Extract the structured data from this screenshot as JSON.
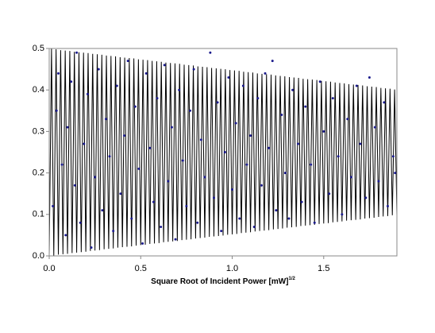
{
  "chart_data": {
    "type": "scatter",
    "xlabel": "Square Root of Incident Power [mW]",
    "xlabel_sup": "1/2",
    "xlim": [
      0,
      1.9
    ],
    "ylim": [
      0,
      0.5
    ],
    "xticks": [
      {
        "value": 0,
        "label": "0.0"
      },
      0.5,
      {
        "value": 1,
        "label": "1.0"
      },
      1.5
    ],
    "yticks": [
      {
        "value": 0,
        "label": "0.0"
      },
      0.1,
      0.2,
      0.3,
      0.4,
      0.5
    ],
    "grid": false,
    "series": [
      {
        "type": "line",
        "color": "#000000",
        "x": [
          0,
          0.0125,
          0.025,
          0.0375,
          0.05,
          0.0625,
          0.075,
          0.0875,
          0.1,
          0.1125,
          0.125,
          0.1375,
          0.15,
          0.1625,
          0.175,
          0.1875,
          0.2,
          0.2125,
          0.225,
          0.2375,
          0.25,
          0.2625,
          0.275,
          0.2875,
          0.3,
          0.3125,
          0.325,
          0.3375,
          0.35,
          0.3625,
          0.375,
          0.3875,
          0.4,
          0.4125,
          0.425,
          0.4375,
          0.45,
          0.4625,
          0.475,
          0.4875,
          0.5,
          0.5125,
          0.525,
          0.5375,
          0.55,
          0.5625,
          0.575,
          0.5875,
          0.6,
          0.6125,
          0.625,
          0.6375,
          0.65,
          0.6625,
          0.675,
          0.6875,
          0.7,
          0.7125,
          0.725,
          0.7375,
          0.75,
          0.7625,
          0.775,
          0.7875,
          0.8,
          0.8125,
          0.825,
          0.8375,
          0.85,
          0.8625,
          0.875,
          0.8875,
          0.9,
          0.9125,
          0.925,
          0.9375,
          0.95,
          0.9625,
          0.975,
          0.9875,
          1,
          1.0125,
          1.025,
          1.0375,
          1.05,
          1.0625,
          1.075,
          1.0875,
          1.1,
          1.1125,
          1.125,
          1.1375,
          1.15,
          1.1625,
          1.175,
          1.1875,
          1.2,
          1.2125,
          1.225,
          1.2375,
          1.25,
          1.2625,
          1.275,
          1.2875,
          1.3,
          1.3125,
          1.325,
          1.3375,
          1.35,
          1.3625,
          1.375,
          1.3875,
          1.4,
          1.4125,
          1.425,
          1.4375,
          1.45,
          1.4625,
          1.475,
          1.4875,
          1.5,
          1.5125,
          1.525,
          1.5375,
          1.55,
          1.5625,
          1.575,
          1.5875,
          1.6,
          1.6125,
          1.625,
          1.6375,
          1.65,
          1.6625,
          1.675,
          1.6875,
          1.7,
          1.7125,
          1.725,
          1.7375,
          1.75,
          1.7625,
          1.775,
          1.7875,
          1.8,
          1.8125,
          1.825,
          1.8375,
          1.85,
          1.8625,
          1.875,
          1.8875,
          1.9
        ],
        "values": [
          0,
          0.499,
          0.001,
          0.498,
          0.003,
          0.496,
          0.004,
          0.495,
          0.005,
          0.494,
          0.007,
          0.492,
          0.008,
          0.491,
          0.009,
          0.49,
          0.01,
          0.489,
          0.012,
          0.487,
          0.013,
          0.486,
          0.014,
          0.485,
          0.016,
          0.483,
          0.017,
          0.482,
          0.018,
          0.481,
          0.02,
          0.479,
          0.021,
          0.478,
          0.022,
          0.477,
          0.023,
          0.476,
          0.025,
          0.474,
          0.026,
          0.473,
          0.027,
          0.472,
          0.029,
          0.47,
          0.03,
          0.469,
          0.031,
          0.468,
          0.033,
          0.466,
          0.034,
          0.465,
          0.035,
          0.464,
          0.036,
          0.463,
          0.038,
          0.461,
          0.039,
          0.46,
          0.04,
          0.459,
          0.042,
          0.457,
          0.043,
          0.456,
          0.044,
          0.455,
          0.046,
          0.453,
          0.047,
          0.452,
          0.048,
          0.451,
          0.049,
          0.45,
          0.051,
          0.448,
          0.052,
          0.447,
          0.053,
          0.446,
          0.055,
          0.444,
          0.056,
          0.443,
          0.057,
          0.442,
          0.059,
          0.44,
          0.06,
          0.439,
          0.061,
          0.438,
          0.062,
          0.437,
          0.064,
          0.435,
          0.065,
          0.434,
          0.066,
          0.433,
          0.068,
          0.431,
          0.069,
          0.43,
          0.07,
          0.429,
          0.072,
          0.427,
          0.073,
          0.426,
          0.074,
          0.425,
          0.075,
          0.424,
          0.077,
          0.422,
          0.078,
          0.421,
          0.079,
          0.42,
          0.081,
          0.418,
          0.082,
          0.417,
          0.083,
          0.416,
          0.085,
          0.414,
          0.086,
          0.413,
          0.087,
          0.412,
          0.088,
          0.411,
          0.09,
          0.409,
          0.091,
          0.408,
          0.092,
          0.407,
          0.094,
          0.405,
          0.095,
          0.404,
          0.096,
          0.403,
          0.098,
          0.401,
          0.099
        ]
      },
      {
        "type": "scatter",
        "color": "#1a1a8c",
        "x": [
          0.02,
          0.04,
          0.05,
          0.07,
          0.09,
          0.1,
          0.12,
          0.14,
          0.15,
          0.17,
          0.19,
          0.21,
          0.23,
          0.25,
          0.27,
          0.29,
          0.31,
          0.33,
          0.35,
          0.37,
          0.39,
          0.41,
          0.43,
          0.45,
          0.47,
          0.49,
          0.51,
          0.53,
          0.55,
          0.57,
          0.59,
          0.61,
          0.63,
          0.65,
          0.67,
          0.69,
          0.71,
          0.73,
          0.75,
          0.77,
          0.79,
          0.81,
          0.83,
          0.85,
          0.88,
          0.9,
          0.92,
          0.94,
          0.96,
          0.98,
          1,
          1.02,
          1.04,
          1.06,
          1.08,
          1.1,
          1.12,
          1.14,
          1.16,
          1.18,
          1.2,
          1.22,
          1.24,
          1.27,
          1.29,
          1.31,
          1.33,
          1.36,
          1.38,
          1.4,
          1.43,
          1.45,
          1.48,
          1.5,
          1.53,
          1.55,
          1.58,
          1.6,
          1.63,
          1.65,
          1.68,
          1.7,
          1.73,
          1.75,
          1.78,
          1.8,
          1.83,
          1.85,
          1.88,
          1.89
        ],
        "values": [
          0.12,
          0.35,
          0.44,
          0.22,
          0.05,
          0.31,
          0.42,
          0.17,
          0.49,
          0.08,
          0.27,
          0.39,
          0.02,
          0.19,
          0.45,
          0.11,
          0.33,
          0.24,
          0.06,
          0.41,
          0.15,
          0.29,
          0.47,
          0.09,
          0.36,
          0.21,
          0.03,
          0.44,
          0.26,
          0.13,
          0.38,
          0.07,
          0.46,
          0.18,
          0.31,
          0.04,
          0.4,
          0.23,
          0.12,
          0.35,
          0.45,
          0.08,
          0.28,
          0.19,
          0.49,
          0.14,
          0.37,
          0.06,
          0.25,
          0.43,
          0.16,
          0.32,
          0.09,
          0.41,
          0.22,
          0.29,
          0.07,
          0.38,
          0.17,
          0.44,
          0.26,
          0.47,
          0.11,
          0.34,
          0.2,
          0.09,
          0.4,
          0.27,
          0.13,
          0.36,
          0.22,
          0.08,
          0.42,
          0.3,
          0.15,
          0.38,
          0.24,
          0.1,
          0.33,
          0.19,
          0.41,
          0.27,
          0.14,
          0.43,
          0.31,
          0.18,
          0.37,
          0.12,
          0.24,
          0.2
        ]
      }
    ]
  }
}
